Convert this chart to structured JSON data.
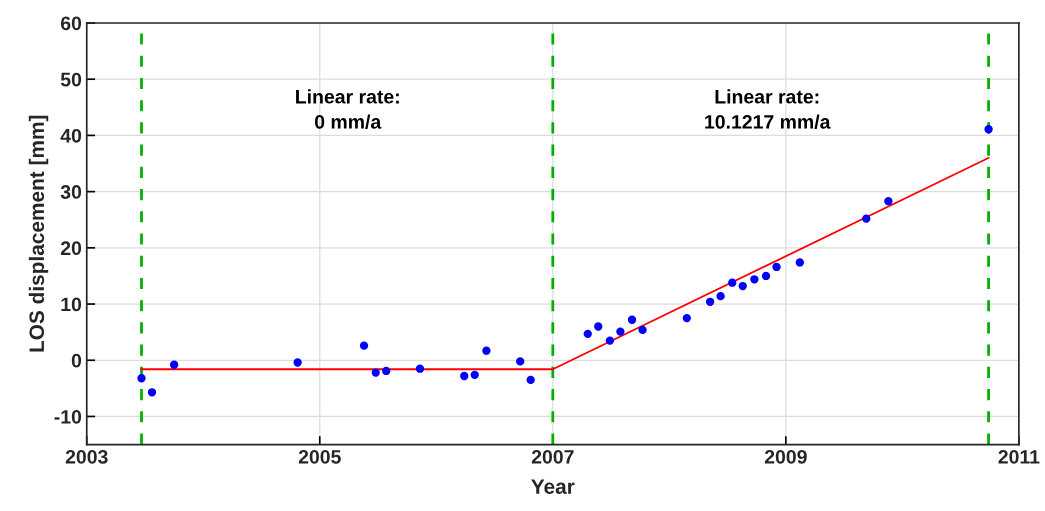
{
  "chart_data": {
    "type": "scatter",
    "xlabel": "Year",
    "ylabel": "LOS displacement [mm]",
    "xlim": [
      2003,
      2011
    ],
    "xticks": [
      2003,
      2005,
      2007,
      2009,
      2011
    ],
    "ylim": [
      -15,
      60
    ],
    "yticks": [
      -10,
      0,
      10,
      20,
      30,
      40,
      50,
      60
    ],
    "grid": true,
    "marker": "circle",
    "series": [
      {
        "color": "#0000ff",
        "x": [
          2003.47,
          2003.56,
          2003.75,
          2004.81,
          2005.38,
          2005.48,
          2005.57,
          2005.86,
          2006.24,
          2006.33,
          2006.43,
          2006.72,
          2006.81,
          2007.3,
          2007.39,
          2007.49,
          2007.58,
          2007.68,
          2007.77,
          2008.15,
          2008.35,
          2008.44,
          2008.54,
          2008.63,
          2008.73,
          2008.83,
          2008.92,
          2009.12,
          2009.69,
          2009.88,
          2010.74
        ],
        "values": [
          -3.2,
          -5.7,
          -0.8,
          -0.4,
          2.6,
          -2.2,
          -1.9,
          -1.5,
          -2.8,
          -2.6,
          1.7,
          -0.2,
          -3.5,
          4.7,
          6.0,
          3.5,
          5.1,
          7.2,
          5.4,
          7.5,
          10.4,
          11.4,
          13.8,
          13.2,
          14.4,
          15.0,
          16.6,
          17.4,
          25.2,
          28.3,
          41.1
        ]
      },
      {
        "type": "line",
        "color": "#ff0000",
        "marker": "none",
        "line_style": "solid",
        "x": [
          2003.47,
          2007.0,
          2010.74
        ],
        "values": [
          -1.6,
          -1.6,
          36.0
        ]
      }
    ],
    "ref_lines": [
      {
        "axis": "x",
        "value": 2003.47,
        "color": "#00b000",
        "line_style": "dashed"
      },
      {
        "axis": "x",
        "value": 2007.0,
        "color": "#00b000",
        "line_style": "dashed"
      },
      {
        "axis": "x",
        "value": 2010.74,
        "color": "#00b000",
        "line_style": "dashed"
      }
    ],
    "annotations": [
      "Linear rate:\n0 mm/a",
      "Linear rate:\n10.1217 mm/a"
    ]
  }
}
